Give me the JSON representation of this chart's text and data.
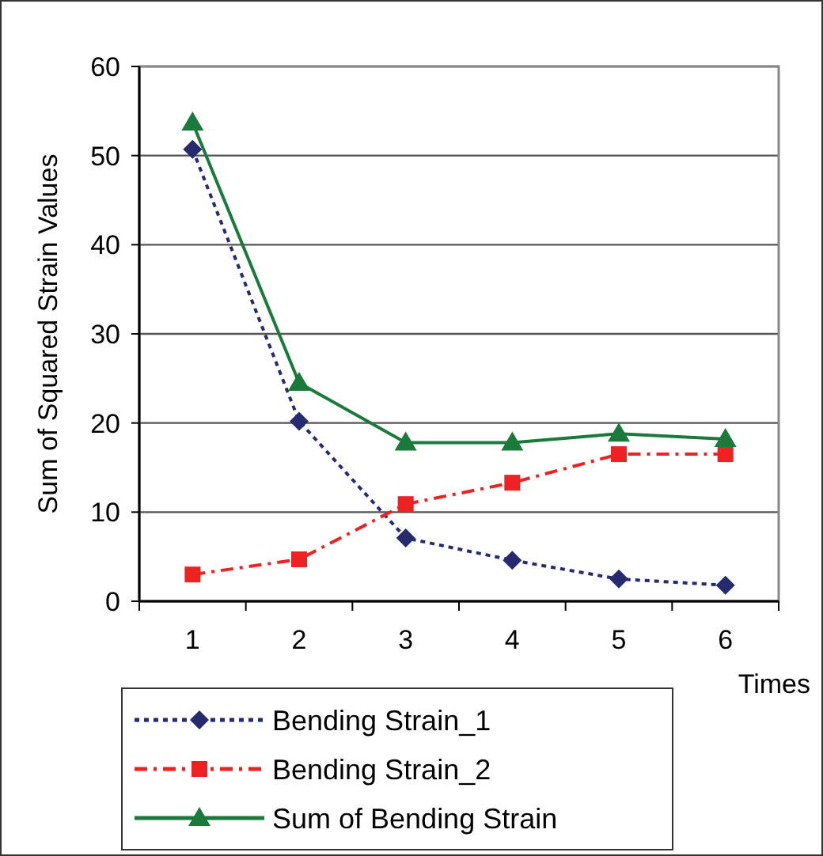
{
  "chart_data": {
    "type": "line",
    "xlabel": "Times",
    "ylabel": "Sum of Squared Strain Values",
    "categories": [
      "1",
      "2",
      "3",
      "4",
      "5",
      "6"
    ],
    "ylim": [
      0,
      60
    ],
    "yticks": [
      0,
      10,
      20,
      30,
      40,
      50,
      60
    ],
    "grid": "y",
    "legend": "bottom left",
    "series": [
      {
        "name": "Bending Strain_1",
        "color": "#262a6e",
        "values": [
          50.7,
          20.2,
          7.1,
          4.6,
          2.5,
          1.8
        ],
        "marker": "diamond",
        "line_style": "dotted"
      },
      {
        "name": "Bending Strain_2",
        "color": "#ee2222",
        "values": [
          3.0,
          4.7,
          10.9,
          13.3,
          16.5,
          16.5
        ],
        "marker": "square",
        "line_style": "dashed"
      },
      {
        "name": "Sum of Bending Strain",
        "color": "#1a7a3a",
        "values": [
          53.7,
          24.5,
          17.8,
          17.8,
          18.8,
          18.2
        ],
        "marker": "triangle",
        "line_style": "solid"
      }
    ]
  }
}
